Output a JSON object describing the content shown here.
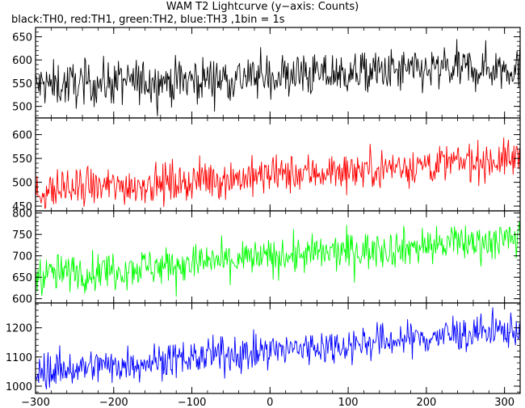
{
  "title": "WAM T2 Lightcurve (y−axis: Counts)",
  "subtitle": "black:TH0, red:TH1, green:TH2, blue:TH3 ,1bin = 1s",
  "chart_data": {
    "type": "line",
    "xlabel": "",
    "ylabel": "",
    "xlim": [
      -300,
      320
    ],
    "xticks": [
      -300,
      -200,
      -100,
      0,
      100,
      200,
      300
    ],
    "xtick_labels": [
      "−300",
      "−200",
      "−100",
      "0",
      "100",
      "200",
      "300"
    ],
    "grid": false,
    "legend": "none",
    "panels": [
      {
        "label": "TH0",
        "color": "#000000",
        "ylim": [
          475,
          670
        ],
        "yticks": [
          500,
          550,
          600,
          650
        ],
        "trend": {
          "start": 545,
          "end": 585,
          "noise": 24
        }
      },
      {
        "label": "TH1",
        "color": "#ff0000",
        "ylim": [
          440,
          635
        ],
        "yticks": [
          450,
          500,
          550,
          600
        ],
        "trend": {
          "start": 480,
          "end": 550,
          "noise": 20
        }
      },
      {
        "label": "TH2",
        "color": "#00ff00",
        "ylim": [
          590,
          805
        ],
        "yticks": [
          600,
          650,
          700,
          750,
          800
        ],
        "trend": {
          "start": 655,
          "end": 740,
          "noise": 22
        }
      },
      {
        "label": "TH3",
        "color": "#0000ff",
        "ylim": [
          975,
          1285
        ],
        "yticks": [
          1000,
          1100,
          1200
        ],
        "trend": {
          "start": 1050,
          "end": 1195,
          "noise": 30
        }
      }
    ]
  }
}
